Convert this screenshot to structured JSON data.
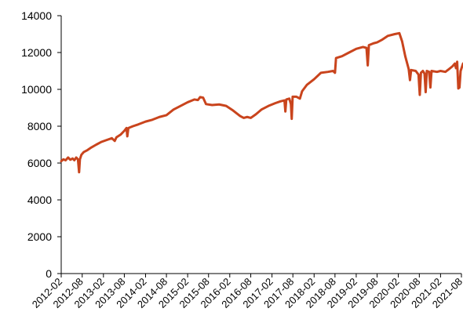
{
  "chart_data": {
    "type": "line",
    "title": "",
    "xlabel": "",
    "ylabel": "",
    "ylim": [
      0,
      14000
    ],
    "y_ticks": [
      0,
      2000,
      4000,
      6000,
      8000,
      10000,
      12000,
      14000
    ],
    "x_ticks": [
      "2012-02",
      "2012-08",
      "2013-02",
      "2013-08",
      "2014-02",
      "2014-08",
      "2015-02",
      "2015-08",
      "2016-02",
      "2016-08",
      "2017-02",
      "2017-08",
      "2018-02",
      "2018-08",
      "2019-02",
      "2019-08",
      "2020-02",
      "2020-08",
      "2021-02",
      "2021-08"
    ],
    "xlim": [
      "2012-02",
      "2021-08"
    ],
    "grid": false,
    "legend": "none",
    "colors": {
      "line": "#C9441D",
      "axis": "#000000"
    },
    "series": [
      {
        "points": [
          [
            "2012-02-01",
            6100
          ],
          [
            "2012-02-20",
            6200
          ],
          [
            "2012-03-10",
            6150
          ],
          [
            "2012-04-01",
            6300
          ],
          [
            "2012-04-20",
            6180
          ],
          [
            "2012-05-10",
            6250
          ],
          [
            "2012-05-25",
            6150
          ],
          [
            "2012-06-10",
            6300
          ],
          [
            "2012-06-25",
            6200
          ],
          [
            "2012-07-05",
            5500
          ],
          [
            "2012-07-12",
            6200
          ],
          [
            "2012-07-25",
            6450
          ],
          [
            "2012-08-15",
            6600
          ],
          [
            "2012-09-15",
            6700
          ],
          [
            "2012-10-20",
            6850
          ],
          [
            "2012-12-01",
            7000
          ],
          [
            "2013-01-15",
            7150
          ],
          [
            "2013-03-01",
            7250
          ],
          [
            "2013-04-15",
            7350
          ],
          [
            "2013-05-10",
            7200
          ],
          [
            "2013-05-25",
            7400
          ],
          [
            "2013-07-01",
            7550
          ],
          [
            "2013-08-01",
            7750
          ],
          [
            "2013-08-20",
            7900
          ],
          [
            "2013-08-27",
            7450
          ],
          [
            "2013-09-05",
            7900
          ],
          [
            "2013-10-15",
            8000
          ],
          [
            "2013-12-01",
            8100
          ],
          [
            "2014-02-01",
            8250
          ],
          [
            "2014-04-01",
            8350
          ],
          [
            "2014-06-01",
            8500
          ],
          [
            "2014-08-01",
            8600
          ],
          [
            "2014-10-01",
            8900
          ],
          [
            "2014-12-01",
            9100
          ],
          [
            "2015-02-01",
            9300
          ],
          [
            "2015-04-01",
            9450
          ],
          [
            "2015-05-01",
            9420
          ],
          [
            "2015-05-20",
            9580
          ],
          [
            "2015-06-15",
            9550
          ],
          [
            "2015-07-10",
            9200
          ],
          [
            "2015-09-01",
            9150
          ],
          [
            "2015-11-01",
            9180
          ],
          [
            "2016-01-01",
            9100
          ],
          [
            "2016-03-01",
            8850
          ],
          [
            "2016-05-01",
            8550
          ],
          [
            "2016-06-01",
            8450
          ],
          [
            "2016-07-01",
            8500
          ],
          [
            "2016-08-01",
            8450
          ],
          [
            "2016-09-15",
            8650
          ],
          [
            "2016-11-01",
            8900
          ],
          [
            "2017-01-01",
            9100
          ],
          [
            "2017-03-01",
            9250
          ],
          [
            "2017-04-15",
            9350
          ],
          [
            "2017-05-20",
            9400
          ],
          [
            "2017-05-28",
            8800
          ],
          [
            "2017-06-05",
            9450
          ],
          [
            "2017-07-01",
            9500
          ],
          [
            "2017-07-15",
            9200
          ],
          [
            "2017-07-22",
            8400
          ],
          [
            "2017-07-30",
            9600
          ],
          [
            "2017-09-01",
            9600
          ],
          [
            "2017-10-01",
            9500
          ],
          [
            "2017-10-20",
            9900
          ],
          [
            "2017-12-01",
            10250
          ],
          [
            "2018-02-01",
            10550
          ],
          [
            "2018-04-01",
            10900
          ],
          [
            "2018-06-01",
            10950
          ],
          [
            "2018-07-15",
            11000
          ],
          [
            "2018-08-01",
            10900
          ],
          [
            "2018-08-10",
            11700
          ],
          [
            "2018-10-01",
            11800
          ],
          [
            "2018-12-01",
            12000
          ],
          [
            "2019-02-01",
            12200
          ],
          [
            "2019-04-01",
            12300
          ],
          [
            "2019-05-01",
            12250
          ],
          [
            "2019-05-12",
            11300
          ],
          [
            "2019-05-22",
            12400
          ],
          [
            "2019-07-01",
            12500
          ],
          [
            "2019-08-01",
            12550
          ],
          [
            "2019-09-15",
            12700
          ],
          [
            "2019-11-01",
            12900
          ],
          [
            "2020-01-01",
            13000
          ],
          [
            "2020-02-10",
            13050
          ],
          [
            "2020-03-05",
            12600
          ],
          [
            "2020-04-01",
            11800
          ],
          [
            "2020-05-01",
            11100
          ],
          [
            "2020-05-12",
            10500
          ],
          [
            "2020-05-22",
            11050
          ],
          [
            "2020-07-01",
            11000
          ],
          [
            "2020-07-25",
            10800
          ],
          [
            "2020-08-05",
            9700
          ],
          [
            "2020-08-15",
            10900
          ],
          [
            "2020-09-01",
            11000
          ],
          [
            "2020-09-15",
            10850
          ],
          [
            "2020-09-25",
            9850
          ],
          [
            "2020-10-05",
            11000
          ],
          [
            "2020-10-25",
            10950
          ],
          [
            "2020-11-05",
            10100
          ],
          [
            "2020-11-15",
            11000
          ],
          [
            "2021-01-01",
            10950
          ],
          [
            "2021-02-01",
            11000
          ],
          [
            "2021-03-15",
            10950
          ],
          [
            "2021-04-15",
            11100
          ],
          [
            "2021-05-15",
            11250
          ],
          [
            "2021-06-05",
            11400
          ],
          [
            "2021-06-15",
            11150
          ],
          [
            "2021-06-25",
            11500
          ],
          [
            "2021-07-05",
            10050
          ],
          [
            "2021-07-15",
            10100
          ],
          [
            "2021-07-25",
            11000
          ],
          [
            "2021-08-15",
            11400
          ]
        ]
      }
    ]
  }
}
